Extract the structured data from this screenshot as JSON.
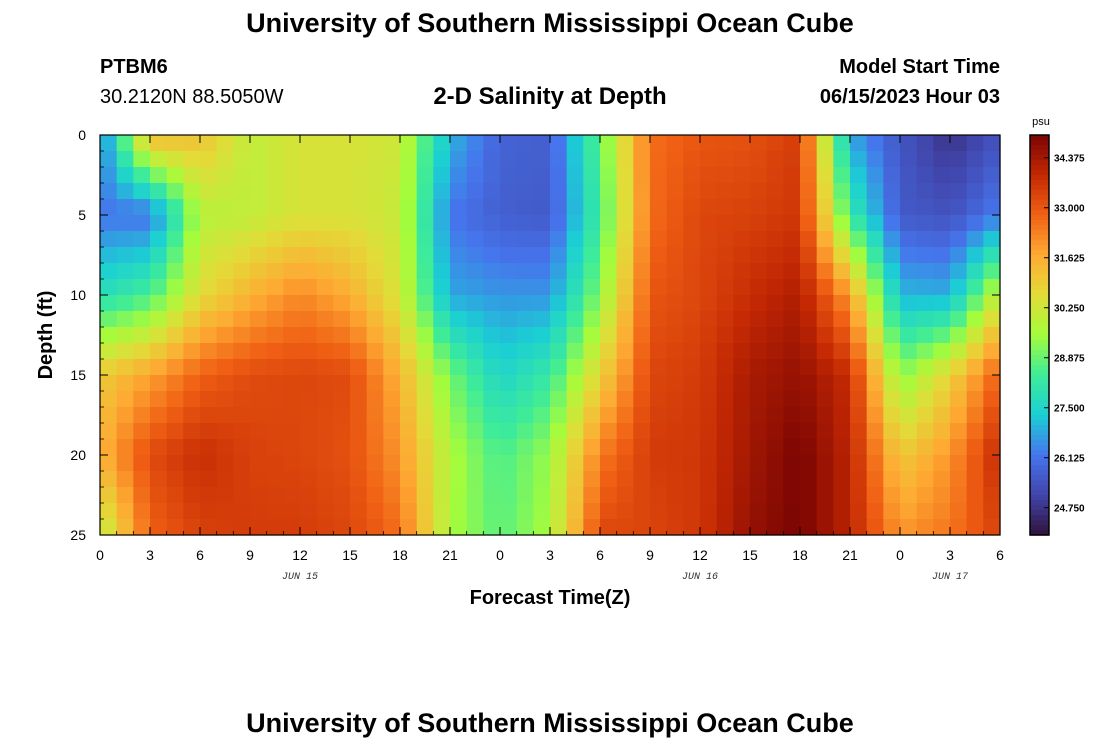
{
  "header": {
    "main_title": "University of Southern Mississippi Ocean Cube",
    "station_id": "PTBM6",
    "station_coords": "30.2120N  88.5050W",
    "chart_title": "2-D Salinity at Depth",
    "model_label": "Model Start Time",
    "model_time": "06/15/2023 Hour 03"
  },
  "footer": {
    "title": "University of Southern Mississippi Ocean Cube"
  },
  "chart_data": {
    "type": "heatmap",
    "title": "2-D Salinity at Depth",
    "xlabel": "Forecast Time(Z)",
    "ylabel": "Depth (ft)",
    "units": "psu",
    "x_hours_range": [
      0,
      54
    ],
    "y_range": [
      0,
      25
    ],
    "y_inverted": true,
    "x_tick_hours": [
      0,
      3,
      6,
      9,
      12,
      15,
      18,
      21,
      24,
      27,
      30,
      33,
      36,
      39,
      42,
      45,
      48,
      51,
      54
    ],
    "x_tick_labels": [
      "0",
      "3",
      "6",
      "9",
      "12",
      "15",
      "18",
      "21",
      "0",
      "3",
      "6",
      "9",
      "12",
      "15",
      "18",
      "21",
      "0",
      "3",
      "6"
    ],
    "y_ticks": [
      0,
      5,
      10,
      15,
      20,
      25
    ],
    "y_tick_labels": [
      "0",
      "5",
      "10",
      "15",
      "20",
      "25"
    ],
    "date_labels": [
      {
        "text": "JUN 15",
        "hour": 12
      },
      {
        "text": "JUN 16",
        "hour": 36
      },
      {
        "text": "JUN 17",
        "hour": 51
      }
    ],
    "colorbar": {
      "min": 24.0,
      "max": 35.0,
      "ticks": [
        24.75,
        26.125,
        27.5,
        28.875,
        30.25,
        31.625,
        33.0,
        34.375
      ],
      "tick_labels": [
        "24.750",
        "26.125",
        "27.500",
        "28.875",
        "30.250",
        "31.625",
        "33.000",
        "34.375"
      ]
    },
    "salinity_grid": {
      "hours": [
        0,
        3,
        6,
        9,
        12,
        15,
        18,
        21,
        24,
        27,
        30,
        33,
        36,
        39,
        42,
        45,
        48,
        51,
        54
      ],
      "depths": [
        0,
        5,
        10,
        15,
        20,
        25
      ],
      "values": [
        [
          26.2,
          31.5,
          31.2,
          30.0,
          30.4,
          30.4,
          30.2,
          27.0,
          25.8,
          25.7,
          28.8,
          32.6,
          33.0,
          33.1,
          33.5,
          26.8,
          25.5,
          24.7,
          25.4
        ],
        [
          26.2,
          26.1,
          29.8,
          30.0,
          30.4,
          30.4,
          30.1,
          26.2,
          25.7,
          25.6,
          28.4,
          32.6,
          33.3,
          33.4,
          33.6,
          28.3,
          25.6,
          25.4,
          26.3
        ],
        [
          27.8,
          28.5,
          30.6,
          31.5,
          32.2,
          31.6,
          30.3,
          26.8,
          26.6,
          26.6,
          29.2,
          33.0,
          33.3,
          33.8,
          34.2,
          31.9,
          27.0,
          26.9,
          30.2
        ],
        [
          31.0,
          31.8,
          32.8,
          33.2,
          33.3,
          33.2,
          31.5,
          29.0,
          27.5,
          28.2,
          30.8,
          33.3,
          33.5,
          34.3,
          34.6,
          33.8,
          29.2,
          30.8,
          32.9
        ],
        [
          31.5,
          33.2,
          33.8,
          33.4,
          33.3,
          33.1,
          32.0,
          29.7,
          28.5,
          29.4,
          32.4,
          33.5,
          33.6,
          34.4,
          35.0,
          34.0,
          31.0,
          32.0,
          33.9
        ],
        [
          29.8,
          32.8,
          33.4,
          33.5,
          33.5,
          33.3,
          32.6,
          29.6,
          28.7,
          29.6,
          33.3,
          33.3,
          33.6,
          34.6,
          35.0,
          34.0,
          32.0,
          32.5,
          33.4
        ]
      ]
    }
  }
}
